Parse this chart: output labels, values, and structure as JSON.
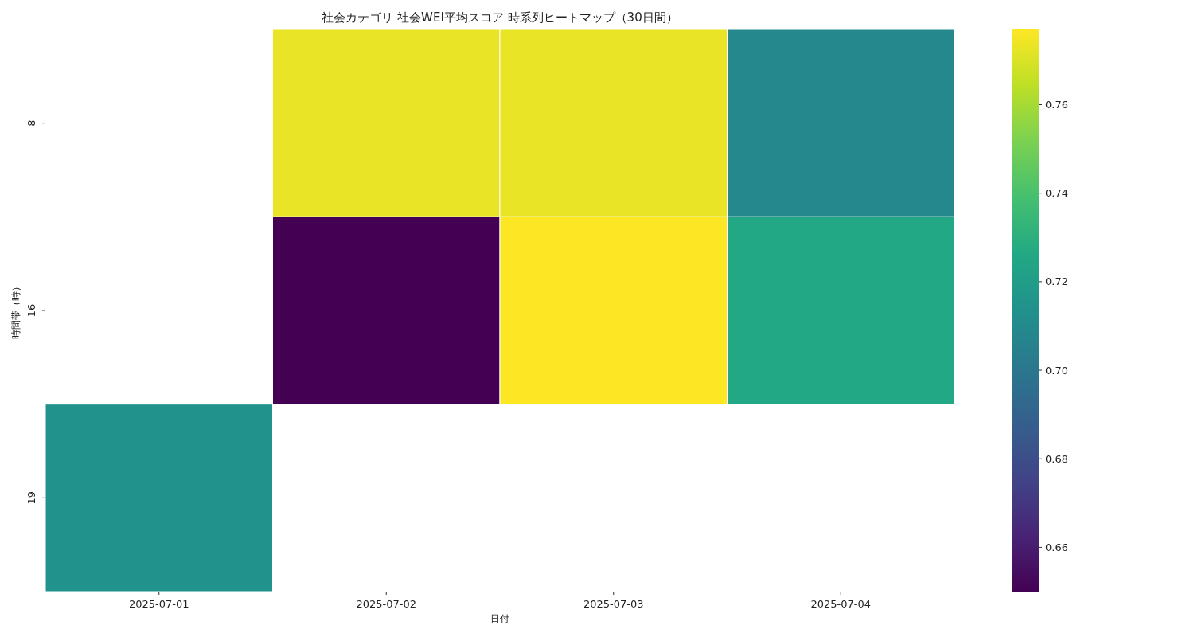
{
  "chart_data": {
    "type": "heatmap",
    "title": "社会カテゴリ 社会WEI平均スコア 時系列ヒートマップ（30日間）",
    "xlabel": "日付",
    "ylabel": "時間帯（時）",
    "categories": [
      "2025-07-01",
      "2025-07-02",
      "2025-07-03",
      "2025-07-04"
    ],
    "y_categories": [
      "8",
      "16",
      "19"
    ],
    "cells": [
      [
        null,
        0.773,
        0.773,
        0.709
      ],
      [
        null,
        0.65,
        0.777,
        0.726
      ],
      [
        0.714,
        null,
        null,
        null
      ]
    ],
    "clim": [
      0.65,
      0.777
    ],
    "cticks": [
      0.66,
      0.68,
      {
        "value": 0.7,
        "label": "0.70"
      },
      0.72,
      0.74,
      0.76
    ]
  }
}
